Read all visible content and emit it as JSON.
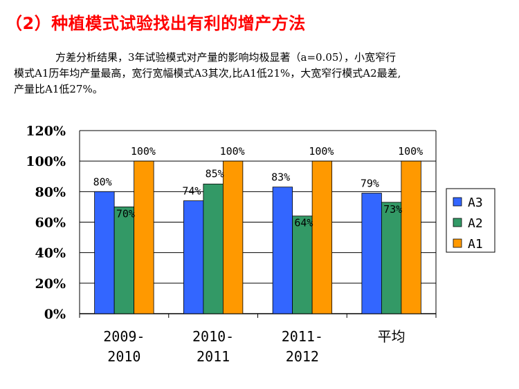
{
  "title": "（2）种植模式试验找出有利的增产方法",
  "paragraph": {
    "line1": "方差分析结果，3年试验模式对产量的影响均极显著（a=0.05），小宽窄行",
    "line2": "模式A1历年均产量最高，宽行宽幅模式A3其次,比A1低21%，大宽窄行模式A2最差,",
    "line3": "产量比A1低27%。"
  },
  "chart_data": {
    "type": "bar",
    "categories": [
      [
        "2009-",
        "2010"
      ],
      [
        "2010-",
        "2011"
      ],
      [
        "2011-",
        "2012"
      ],
      [
        "平均"
      ]
    ],
    "series": [
      {
        "name": "A3",
        "color": "#3366ff",
        "values": [
          80,
          74,
          83,
          79
        ],
        "labels": [
          "80%",
          "74%",
          "83%",
          "79%"
        ]
      },
      {
        "name": "A2",
        "color": "#339966",
        "values": [
          70,
          85,
          64,
          73
        ],
        "labels": [
          "70%",
          "85%",
          "64%",
          "73%"
        ]
      },
      {
        "name": "A1",
        "color": "#ff9900",
        "values": [
          100,
          100,
          100,
          100
        ],
        "labels": [
          "100%",
          "100%",
          "100%",
          "100%"
        ]
      }
    ],
    "y_ticks": [
      "0%",
      "20%",
      "40%",
      "60%",
      "80%",
      "100%",
      "120%"
    ],
    "ylim": [
      0,
      120
    ],
    "grid": true,
    "legend_position": "right"
  }
}
